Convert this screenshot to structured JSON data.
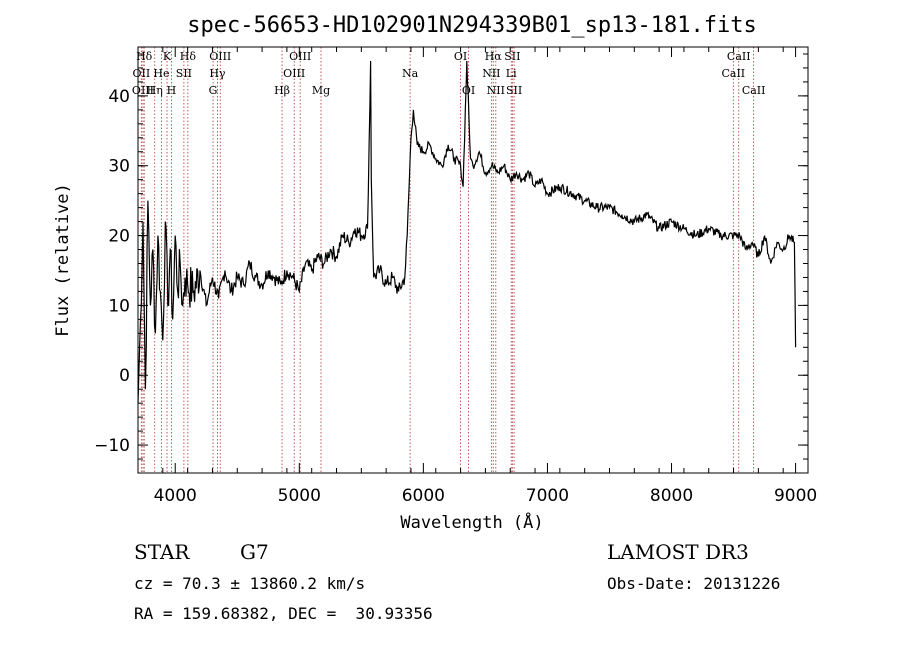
{
  "chart_data": {
    "type": "line",
    "title": "spec-56653-HD102901N294339B01_sp13-181.fits",
    "xlabel": "Wavelength (Å)",
    "ylabel": "Flux (relative)",
    "xlim": [
      3700,
      9100
    ],
    "ylim": [
      -14,
      47
    ],
    "xticks": [
      4000,
      5000,
      6000,
      7000,
      8000,
      9000
    ],
    "yticks": [
      -10,
      0,
      10,
      20,
      30,
      40
    ],
    "grid": false,
    "line_color": "#000000",
    "marker_color": "#b03030",
    "series": [
      {
        "x": [
          3700,
          3720,
          3740,
          3760,
          3780,
          3800,
          3820,
          3840,
          3860,
          3880,
          3900,
          3920,
          3940,
          3960,
          3980,
          4000,
          4020,
          4040,
          4060,
          4080,
          4100,
          4150,
          4200,
          4250,
          4300,
          4350,
          4400,
          4450,
          4500,
          4550,
          4600,
          4650,
          4700,
          4750,
          4800,
          4850,
          4900,
          4950,
          5000,
          5050,
          5100,
          5150,
          5200,
          5250,
          5300,
          5350,
          5400,
          5450,
          5500,
          5550,
          5575,
          5580,
          5600,
          5650,
          5700,
          5750,
          5800,
          5850,
          5870,
          5900,
          5920,
          5950,
          6000,
          6050,
          6100,
          6150,
          6200,
          6250,
          6300,
          6320,
          6350,
          6380,
          6400,
          6450,
          6500,
          6550,
          6600,
          6650,
          6700,
          6750,
          6800,
          6850,
          6900,
          6950,
          7000,
          7100,
          7200,
          7300,
          7400,
          7500,
          7600,
          7700,
          7800,
          7900,
          8000,
          8100,
          8200,
          8300,
          8400,
          8500,
          8550,
          8600,
          8650,
          8700,
          8750,
          8800,
          8850,
          8900,
          8950,
          8990,
          9000
        ],
        "y": [
          -4,
          8,
          22,
          -2,
          25,
          10,
          18,
          6,
          20,
          12,
          5,
          22,
          10,
          18,
          8,
          20,
          12,
          16,
          10,
          14,
          13,
          12,
          15,
          10,
          14,
          11,
          15,
          12,
          14,
          13,
          16,
          14,
          13,
          15,
          14,
          13,
          15,
          14,
          12,
          16,
          15,
          17,
          16,
          18,
          17,
          20,
          19,
          21,
          20,
          21,
          45,
          28,
          14,
          15,
          13,
          14,
          12,
          14,
          20,
          34,
          38,
          33,
          32,
          33,
          31,
          30,
          33,
          31,
          30,
          27,
          45,
          31,
          30,
          32,
          29,
          30,
          29,
          30,
          28,
          29,
          28,
          29,
          27,
          28,
          26,
          27,
          26,
          25,
          24,
          24,
          23,
          22,
          23,
          21,
          22,
          21,
          20,
          21,
          20,
          20,
          20,
          18,
          19,
          17,
          20,
          16,
          19,
          18,
          20,
          19,
          4
        ]
      }
    ],
    "line_markers": [
      {
        "label": "Hδ",
        "x": 3750,
        "row": 0
      },
      {
        "label": "OII",
        "x": 3727,
        "row": 1
      },
      {
        "label": "OIII",
        "x": 3740,
        "row": 2
      },
      {
        "label": "He",
        "x": 3889,
        "row": 1
      },
      {
        "label": "Hη",
        "x": 3835,
        "row": 2
      },
      {
        "label": "K",
        "x": 3934,
        "row": 0
      },
      {
        "label": "SII",
        "x": 4070,
        "row": 1
      },
      {
        "label": "H",
        "x": 3969,
        "row": 2
      },
      {
        "label": "Hδ",
        "x": 4102,
        "row": 0
      },
      {
        "label": "OIII",
        "x": 4363,
        "row": 0
      },
      {
        "label": "Hγ",
        "x": 4340,
        "row": 1
      },
      {
        "label": "G",
        "x": 4305,
        "row": 2
      },
      {
        "label": "OIII",
        "x": 5007,
        "row": 0
      },
      {
        "label": "OIII",
        "x": 4959,
        "row": 1
      },
      {
        "label": "Hβ",
        "x": 4861,
        "row": 2
      },
      {
        "label": "Mg",
        "x": 5175,
        "row": 2
      },
      {
        "label": "Na",
        "x": 5893,
        "row": 1
      },
      {
        "label": "OI",
        "x": 6300,
        "row": 0
      },
      {
        "label": "OI",
        "x": 6364,
        "row": 2
      },
      {
        "label": "Hα",
        "x": 6563,
        "row": 0
      },
      {
        "label": "NII",
        "x": 6548,
        "row": 1
      },
      {
        "label": "NII",
        "x": 6584,
        "row": 2
      },
      {
        "label": "SII",
        "x": 6717,
        "row": 0
      },
      {
        "label": "Li",
        "x": 6708,
        "row": 1
      },
      {
        "label": "SII",
        "x": 6731,
        "row": 2
      },
      {
        "label": "CaII",
        "x": 8542,
        "row": 0
      },
      {
        "label": "CaII",
        "x": 8498,
        "row": 1
      },
      {
        "label": "CaII",
        "x": 8662,
        "row": 2
      }
    ]
  },
  "info": {
    "object_type": "STAR",
    "subclass": "G7",
    "survey": "LAMOST DR3",
    "redshift": "cz = 70.3 ± 13860.2 km/s",
    "obs_date": "Obs-Date: 20131226",
    "coords": "RA = 159.68382, DEC =  30.93356"
  }
}
